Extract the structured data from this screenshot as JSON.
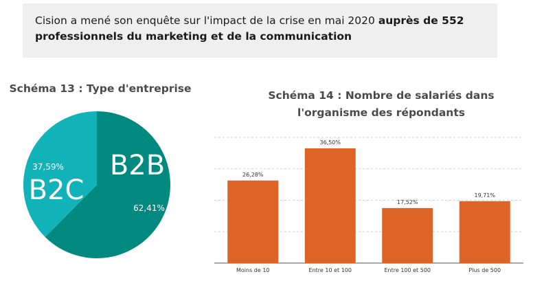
{
  "intro": {
    "text": "Cision a mené son enquête sur l'impact de la crise en mai 2020 ",
    "bold": "auprès de 552 professionnels du marketing et de la communication"
  },
  "colors": {
    "teal_dark": "#00897f",
    "teal_light": "#11b3b9",
    "orange": "#dd6426",
    "panel": "#efefef"
  },
  "chart_data": [
    {
      "type": "pie",
      "title": "Schéma 13 : Type d'entreprise",
      "slices": [
        {
          "label": "B2B",
          "value": 62.41,
          "value_label": "62,41%",
          "color": "#00897f"
        },
        {
          "label": "B2C",
          "value": 37.59,
          "value_label": "37,59%",
          "color": "#11b3b9"
        }
      ]
    },
    {
      "type": "bar",
      "title": "Schéma 14 : Nombre de salariés dans l'organisme des répondants",
      "categories": [
        "Moins de 10",
        "Entre 10 et 100",
        "Entre 100 et 500",
        "Plus de 500"
      ],
      "values": [
        26.28,
        36.5,
        17.52,
        19.71
      ],
      "value_labels": [
        "26,28%",
        "36,50%",
        "17,52%",
        "19,71%"
      ],
      "ylim": [
        0,
        40
      ],
      "grid": true,
      "color": "#dd6426"
    }
  ]
}
